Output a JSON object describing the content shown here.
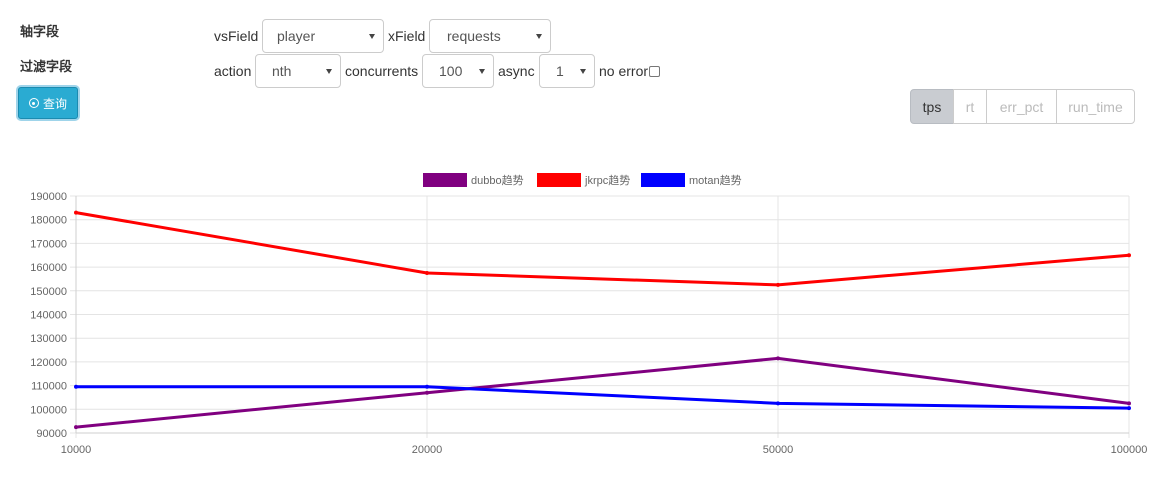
{
  "labels": {
    "axis_field": "轴字段",
    "filter_field": "过滤字段"
  },
  "row1": {
    "vsfield_label": "vsField",
    "vsfield_value": "player",
    "xfield_label": "xField",
    "xfield_value": "requests"
  },
  "row2": {
    "action_label": "action",
    "action_value": "nth",
    "concurrents_label": "concurrents",
    "concurrents_value": "100",
    "async_label": "async",
    "async_value": "1",
    "noerror_label": "no error"
  },
  "query_button": {
    "label": "查询",
    "icon": "circle-dot-icon"
  },
  "metric_tabs": [
    {
      "label": "tps",
      "active": true
    },
    {
      "label": "rt",
      "active": false
    },
    {
      "label": "err_pct",
      "active": false
    },
    {
      "label": "run_time",
      "active": false
    }
  ],
  "chart_data": {
    "type": "line",
    "categories": [
      "10000",
      "20000",
      "50000",
      "100000"
    ],
    "ylim": [
      90000,
      190000
    ],
    "yticks": [
      90000,
      100000,
      110000,
      120000,
      130000,
      140000,
      150000,
      160000,
      170000,
      180000,
      190000
    ],
    "legend_position": "top-center",
    "grid": true,
    "series": [
      {
        "name": "dubbo趋势",
        "color": "#800080",
        "values": [
          92500,
          107000,
          121500,
          102500
        ]
      },
      {
        "name": "jkrpc趋势",
        "color": "#ff0000",
        "values": [
          183000,
          157500,
          152500,
          165000
        ]
      },
      {
        "name": "motan趋势",
        "color": "#0000ff",
        "values": [
          109500,
          109500,
          102500,
          100500
        ]
      }
    ]
  }
}
